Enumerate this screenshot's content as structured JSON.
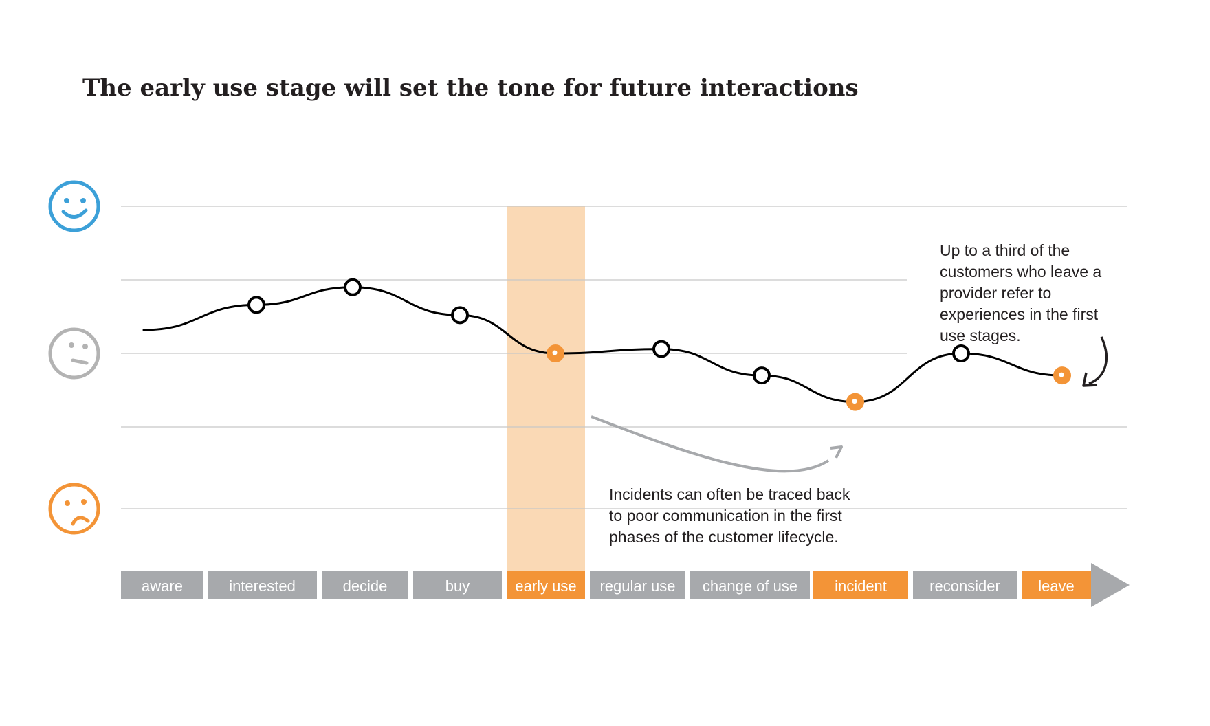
{
  "title": "The early use stage will set the tone for future interactions",
  "colors": {
    "happy": "#3ca0d8",
    "neutral": "#b3b3b3",
    "sad": "#f39437",
    "highlight_band": "#fad9b5",
    "stage_default": "#a7a9ac",
    "stage_highlight": "#f39437",
    "line": "#000000",
    "note_arrow_gray": "#a7a9ac"
  },
  "emotion_scale": [
    {
      "level": "happy",
      "icon": "smiley-happy-icon"
    },
    {
      "level": "neutral",
      "icon": "smiley-neutral-icon"
    },
    {
      "level": "unhappy",
      "icon": "smiley-sad-icon"
    }
  ],
  "stages": [
    {
      "label": "aware",
      "highlight": false
    },
    {
      "label": "interested",
      "highlight": false
    },
    {
      "label": "decide",
      "highlight": false
    },
    {
      "label": "buy",
      "highlight": false
    },
    {
      "label": "early use",
      "highlight": true
    },
    {
      "label": "regular use",
      "highlight": false
    },
    {
      "label": "change of use",
      "highlight": false
    },
    {
      "label": "incident",
      "highlight": true
    },
    {
      "label": "reconsider",
      "highlight": false
    },
    {
      "label": "leave",
      "highlight": true
    }
  ],
  "highlighted_stage": "early use",
  "chart_data": {
    "type": "line",
    "categories": [
      "interested",
      "decide",
      "buy",
      "early use",
      "regular use",
      "change of use",
      "incident",
      "reconsider",
      "leave"
    ],
    "series": [
      {
        "values": [
          0.66,
          0.9,
          0.52,
          0.0,
          0.06,
          -0.3,
          -0.66,
          0.0,
          -0.3
        ]
      }
    ],
    "highlight_points": [
      "early use",
      "incident",
      "leave"
    ],
    "ylim": [
      -2,
      2
    ],
    "grid": true
  },
  "annotations": {
    "incidents": [
      "Incidents can often be traced back",
      "to poor communication in the first",
      "phases of the customer lifecycle."
    ],
    "leave": [
      "Up to a third of the",
      "customers who leave a",
      "provider refer to",
      "experiences in the first",
      "use stages."
    ]
  }
}
